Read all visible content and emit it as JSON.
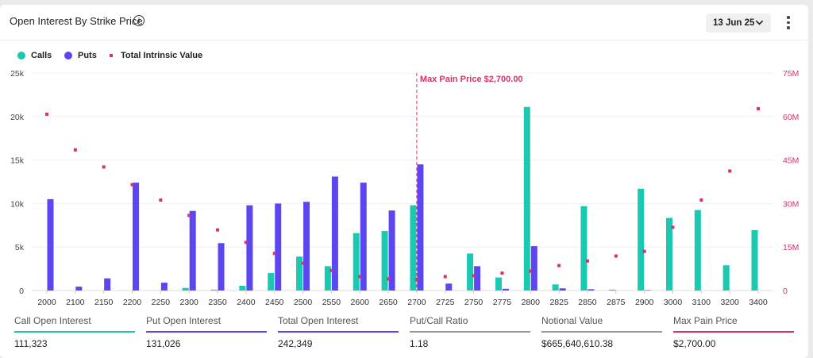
{
  "header": {
    "title": "Open Interest By Strike Price",
    "date_select": "13 Jun 25"
  },
  "legend": [
    {
      "label": "Calls",
      "color": "#19c9b0",
      "shape": "circle"
    },
    {
      "label": "Puts",
      "color": "#5c46f2",
      "shape": "circle"
    },
    {
      "label": "Total Intrinsic Value",
      "color": "#d6336c",
      "shape": "square"
    }
  ],
  "colors": {
    "calls": "#19c9b0",
    "puts": "#5c46f2",
    "intrinsic": "#d6336c",
    "max_pain": "#d6336c"
  },
  "chart_data": {
    "type": "bar",
    "categories": [
      "2000",
      "2100",
      "2150",
      "2200",
      "2250",
      "2300",
      "2350",
      "2400",
      "2450",
      "2500",
      "2550",
      "2600",
      "2650",
      "2700",
      "2725",
      "2750",
      "2775",
      "2800",
      "2825",
      "2850",
      "2875",
      "2900",
      "3000",
      "3100",
      "3200",
      "3400"
    ],
    "series": [
      {
        "name": "Calls",
        "axis": "left",
        "values": [
          0,
          0,
          0,
          0,
          0,
          300,
          100,
          550,
          2000,
          3900,
          2800,
          6600,
          6850,
          9800,
          0,
          4250,
          1500,
          21100,
          700,
          9700,
          100,
          11700,
          8350,
          9250,
          2900,
          6950
        ]
      },
      {
        "name": "Puts",
        "axis": "left",
        "values": [
          10500,
          450,
          1400,
          12400,
          900,
          9150,
          5450,
          9800,
          10000,
          10200,
          13100,
          12400,
          9200,
          14500,
          800,
          2800,
          200,
          5100,
          250,
          150,
          0,
          50,
          0,
          0,
          0,
          0
        ]
      },
      {
        "name": "Total Intrinsic Value",
        "axis": "right",
        "type": "scatter",
        "values": [
          60800000,
          48500000,
          42600000,
          36500000,
          31200000,
          25900000,
          20900000,
          16600000,
          12800000,
          9400000,
          6900000,
          4800000,
          4000000,
          3900000,
          4800000,
          5100000,
          6000000,
          6700000,
          8600000,
          10200000,
          11900000,
          13500000,
          21800000,
          31200000,
          41200000,
          62700000
        ]
      }
    ],
    "ylim_left": [
      0,
      25000
    ],
    "ylim_right": [
      0,
      75000000
    ],
    "yticks_left": [
      "0",
      "5k",
      "10k",
      "15k",
      "20k",
      "25k"
    ],
    "yticks_right": [
      "0",
      "15M",
      "30M",
      "45M",
      "60M",
      "75M"
    ],
    "max_pain": {
      "category": "2700",
      "label": "Max Pain Price $2,700.00"
    },
    "grid": true,
    "legend_position": "top-left"
  },
  "stats": [
    {
      "label": "Call Open Interest",
      "value": "111,323",
      "color": "#19c9b0"
    },
    {
      "label": "Put Open Interest",
      "value": "131,026",
      "color": "#5c46f2"
    },
    {
      "label": "Total Open Interest",
      "value": "242,349",
      "color": "#5c46f2"
    },
    {
      "label": "Put/Call Ratio",
      "value": "1.18",
      "color": "#999999"
    },
    {
      "label": "Notional Value",
      "value": "$665,640,610.38",
      "color": "#999999"
    },
    {
      "label": "Max Pain Price",
      "value": "$2,700.00",
      "color": "#d6336c"
    }
  ]
}
